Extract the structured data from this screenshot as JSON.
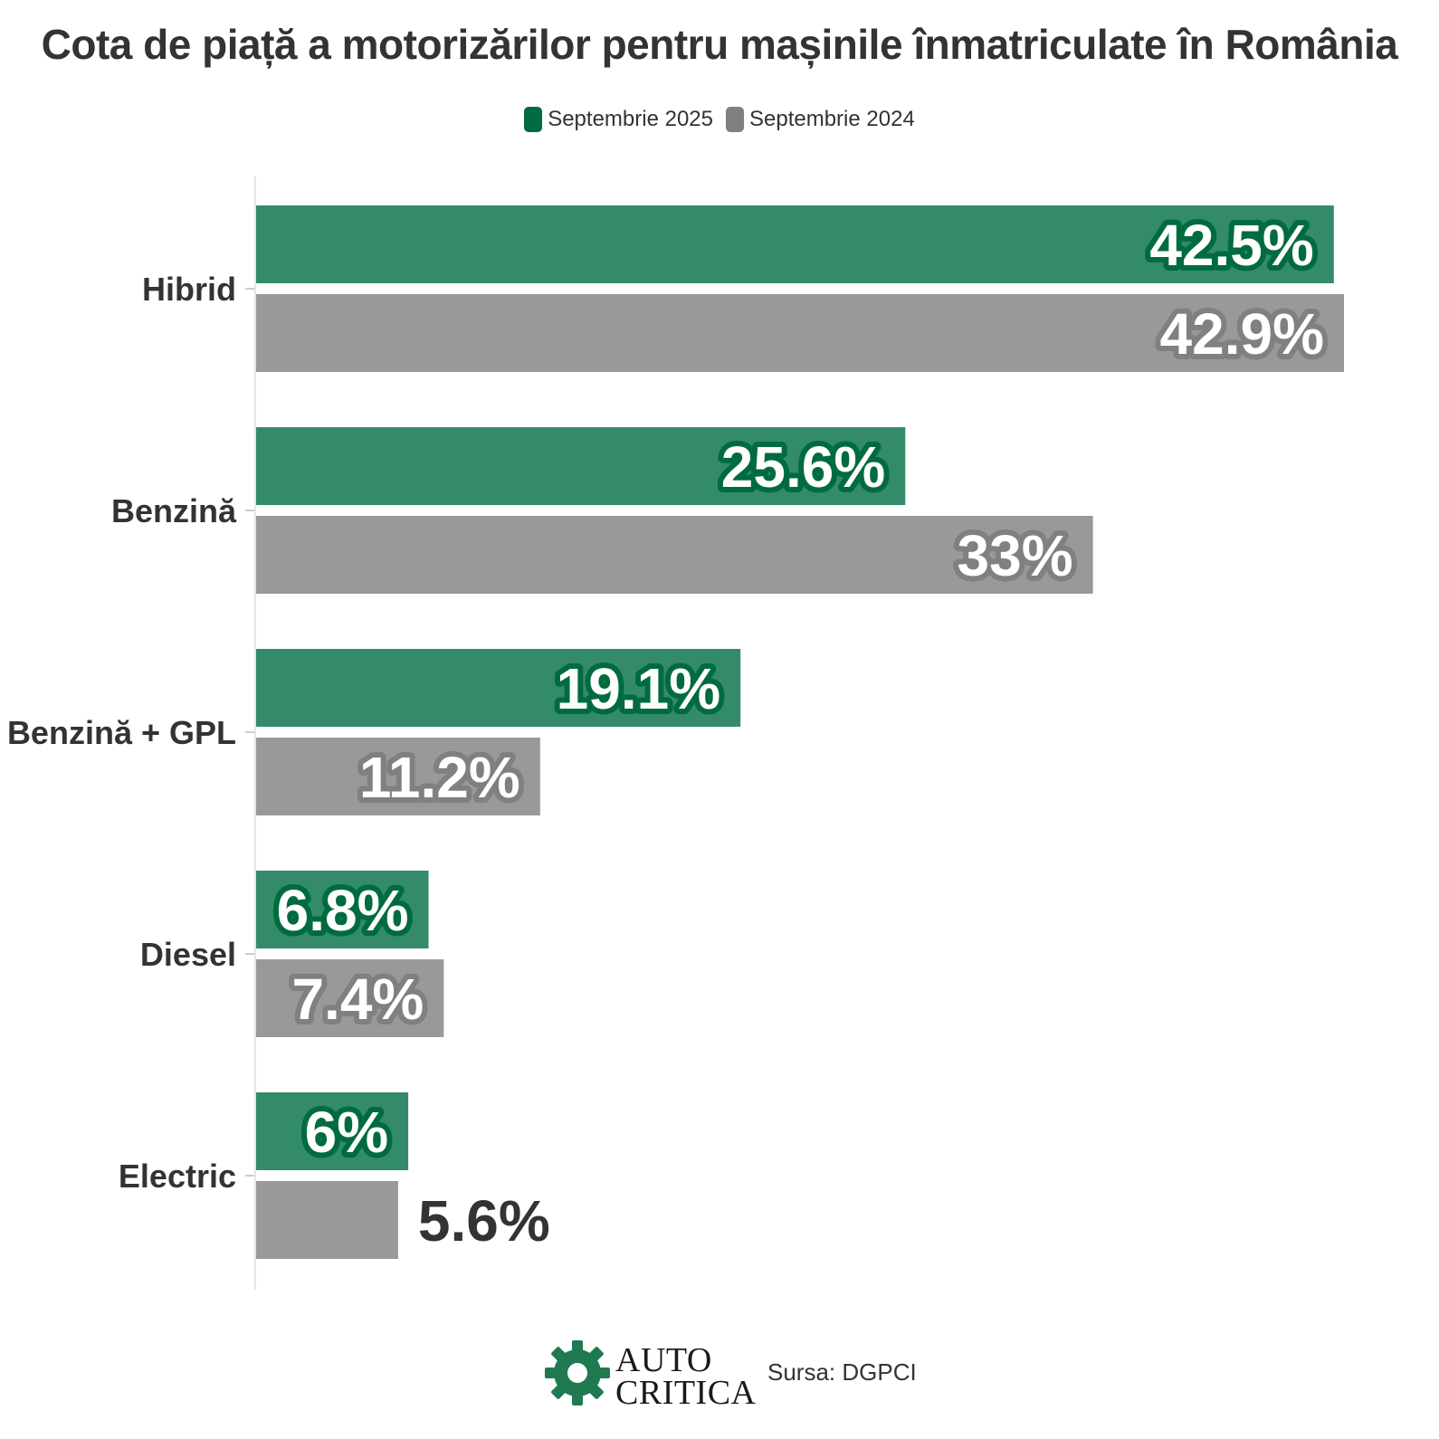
{
  "chart_data": {
    "type": "bar",
    "orientation": "horizontal",
    "title": "Cota de piață a motorizărilor pentru mașinile înmatriculate în România",
    "categories": [
      "Hibrid",
      "Benzină",
      "Benzină + GPL",
      "Diesel",
      "Electric"
    ],
    "series": [
      {
        "name": "Septembrie 2025",
        "color": "#338b69",
        "label_outline": "#006b3f",
        "values": [
          42.5,
          25.6,
          19.1,
          6.8,
          6
        ],
        "labels": [
          "42.5%",
          "25.6%",
          "19.1%",
          "6.8%",
          "6%"
        ]
      },
      {
        "name": "Septembrie 2024",
        "color": "#999999",
        "label_outline": "#808080",
        "values": [
          42.9,
          33,
          11.2,
          7.4,
          5.6
        ],
        "labels": [
          "42.9%",
          "33%",
          "11.2%",
          "7.4%",
          "5.6%"
        ]
      }
    ],
    "xlim": [
      0,
      42.9
    ],
    "grid": false,
    "legend_position": "top-center"
  },
  "legend": [
    {
      "label": "Septembrie 2025",
      "color": "#006b3f"
    },
    {
      "label": "Septembrie 2024",
      "color": "#808080"
    }
  ],
  "footer": {
    "logo_line1": "AUTO",
    "logo_line2": "CRITICA",
    "logo_icon": "gear-icon",
    "source": "Sursa: DGPCI"
  }
}
